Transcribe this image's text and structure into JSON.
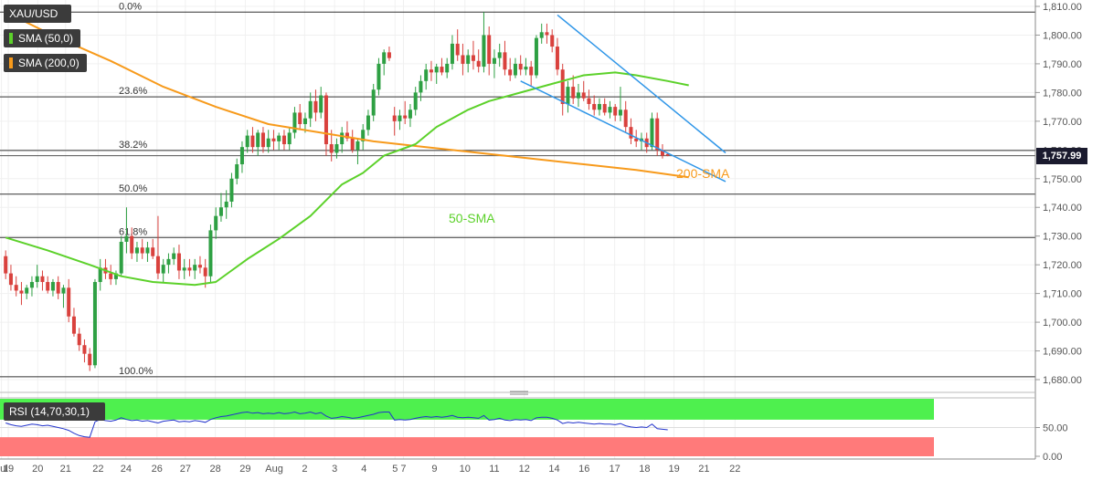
{
  "symbol": "XAU/USD",
  "legend": [
    {
      "label": "SMA (50,0)",
      "color": "#5cd12a"
    },
    {
      "label": "SMA (200,0)",
      "color": "#f79a1b"
    }
  ],
  "rsi_label": "RSI (14,70,30,1)",
  "last_price": "1,757.99",
  "annotations": {
    "sma50": "50-SMA",
    "sma200": "200-SMA"
  },
  "colors": {
    "up": "#2ea043",
    "down": "#d9413d",
    "sma50": "#5cd12a",
    "sma200": "#f79a1b",
    "channel": "#2f96e8",
    "rsi": "#2233cc",
    "overbought": "#4ef04e",
    "oversold": "#ff7a7a"
  },
  "chart_data": {
    "type": "candlestick",
    "y_axis": {
      "min": 1680,
      "max": 1810,
      "ticks": [
        1680,
        1690,
        1700,
        1710,
        1720,
        1730,
        1740,
        1750,
        1760,
        1770,
        1780,
        1790,
        1800,
        1810
      ],
      "tick_labels": [
        "1,680.00",
        "1,690.00",
        "1,700.00",
        "1,710.00",
        "1,720.00",
        "1,730.00",
        "1,740.00",
        "1,750.00",
        "1,760.00",
        "1,770.00",
        "1,780.00",
        "1,790.00",
        "1,800.00",
        "1,810.00"
      ]
    },
    "x_labels": [
      {
        "label": "Jul",
        "t": -0.8
      },
      {
        "label": "19",
        "t": 0.5
      },
      {
        "label": "20",
        "t": 6.1
      },
      {
        "label": "21",
        "t": 11.4
      },
      {
        "label": "22",
        "t": 17.6
      },
      {
        "label": "24",
        "t": 22.9
      },
      {
        "label": "26",
        "t": 28.8
      },
      {
        "label": "27",
        "t": 34.2
      },
      {
        "label": "28",
        "t": 39.9
      },
      {
        "label": "29",
        "t": 45.6
      },
      {
        "label": "Aug",
        "t": 51.1
      },
      {
        "label": "2",
        "t": 56.9
      },
      {
        "label": "3",
        "t": 62.6
      },
      {
        "label": "4",
        "t": 68.2
      },
      {
        "label": "5",
        "t": 74.1
      },
      {
        "label": "7",
        "t": 75.7
      },
      {
        "label": "9",
        "t": 81.6
      },
      {
        "label": "10",
        "t": 87.4
      },
      {
        "label": "11",
        "t": 93.0
      },
      {
        "label": "12",
        "t": 98.7
      },
      {
        "label": "14",
        "t": 104.4
      },
      {
        "label": "16",
        "t": 110.1
      },
      {
        "label": "17",
        "t": 115.9
      },
      {
        "label": "18",
        "t": 121.6
      },
      {
        "label": "19",
        "t": 127.2
      },
      {
        "label": "21",
        "t": 132.9
      },
      {
        "label": "22",
        "t": 138.8
      }
    ],
    "fibonacci": [
      {
        "label": "0.0%",
        "value": 1808
      },
      {
        "label": "23.6%",
        "value": 1778.5
      },
      {
        "label": "38.2%",
        "value": 1759.8
      },
      {
        "label": "50.0%",
        "value": 1744.6
      },
      {
        "label": "61.8%",
        "value": 1729.5
      },
      {
        "label": "100.0%",
        "value": 1681
      }
    ],
    "candles": [
      [
        1723,
        1725,
        1715,
        1717
      ],
      [
        1717,
        1720,
        1711,
        1713
      ],
      [
        1713,
        1716,
        1709,
        1711
      ],
      [
        1711,
        1714,
        1706,
        1710
      ],
      [
        1710,
        1713,
        1708,
        1712
      ],
      [
        1712,
        1716,
        1709,
        1714
      ],
      [
        1714,
        1720,
        1712,
        1716
      ],
      [
        1716,
        1718,
        1711,
        1714
      ],
      [
        1714,
        1716,
        1710,
        1711
      ],
      [
        1711,
        1715,
        1709,
        1714
      ],
      [
        1714,
        1716,
        1708,
        1710
      ],
      [
        1710,
        1713,
        1705,
        1712
      ],
      [
        1712,
        1715,
        1700,
        1702
      ],
      [
        1702,
        1705,
        1695,
        1696
      ],
      [
        1696,
        1698,
        1690,
        1692
      ],
      [
        1692,
        1694,
        1686,
        1689
      ],
      [
        1689,
        1691,
        1683,
        1685
      ],
      [
        1685,
        1715,
        1684,
        1714
      ],
      [
        1714,
        1722,
        1711,
        1719
      ],
      [
        1719,
        1722,
        1715,
        1717
      ],
      [
        1717,
        1720,
        1713,
        1715
      ],
      [
        1715,
        1718,
        1713,
        1717
      ],
      [
        1717,
        1730,
        1716,
        1728
      ],
      [
        1728,
        1740,
        1724,
        1730
      ],
      [
        1730,
        1733,
        1722,
        1724
      ],
      [
        1724,
        1728,
        1721,
        1726
      ],
      [
        1726,
        1729,
        1722,
        1724
      ],
      [
        1724,
        1728,
        1721,
        1726
      ],
      [
        1726,
        1729,
        1722,
        1723
      ],
      [
        1723,
        1737,
        1715,
        1717
      ],
      [
        1717,
        1722,
        1714,
        1720
      ],
      [
        1720,
        1724,
        1717,
        1722
      ],
      [
        1722,
        1726,
        1720,
        1724
      ],
      [
        1724,
        1727,
        1715,
        1718
      ],
      [
        1718,
        1722,
        1715,
        1719
      ],
      [
        1719,
        1722,
        1716,
        1718
      ],
      [
        1718,
        1722,
        1715,
        1720
      ],
      [
        1720,
        1723,
        1717,
        1719
      ],
      [
        1719,
        1722,
        1712,
        1716
      ],
      [
        1716,
        1734,
        1714,
        1732
      ],
      [
        1732,
        1740,
        1729,
        1737
      ],
      [
        1737,
        1745,
        1735,
        1740
      ],
      [
        1740,
        1746,
        1736,
        1742
      ],
      [
        1742,
        1752,
        1740,
        1750
      ],
      [
        1750,
        1757,
        1748,
        1755
      ],
      [
        1755,
        1763,
        1752,
        1761
      ],
      [
        1761,
        1767,
        1759,
        1765
      ],
      [
        1765,
        1768,
        1759,
        1761
      ],
      [
        1761,
        1767,
        1758,
        1766
      ],
      [
        1766,
        1768,
        1759,
        1761
      ],
      [
        1761,
        1767,
        1759,
        1764
      ],
      [
        1764,
        1767,
        1760,
        1763
      ],
      [
        1763,
        1766,
        1760,
        1765
      ],
      [
        1765,
        1767,
        1760,
        1762
      ],
      [
        1762,
        1768,
        1760,
        1766
      ],
      [
        1766,
        1775,
        1764,
        1773
      ],
      [
        1773,
        1776,
        1767,
        1769
      ],
      [
        1769,
        1773,
        1766,
        1771
      ],
      [
        1771,
        1780,
        1768,
        1777
      ],
      [
        1777,
        1781,
        1770,
        1773
      ],
      [
        1773,
        1782,
        1771,
        1779
      ],
      [
        1779,
        1780,
        1758,
        1762
      ],
      [
        1762,
        1767,
        1756,
        1759
      ],
      [
        1759,
        1764,
        1757,
        1762
      ],
      [
        1762,
        1768,
        1759,
        1766
      ],
      [
        1766,
        1770,
        1763,
        1764
      ],
      [
        1764,
        1767,
        1759,
        1760
      ],
      [
        1760,
        1764,
        1755,
        1763
      ],
      [
        1763,
        1769,
        1760,
        1767
      ],
      [
        1767,
        1774,
        1765,
        1772
      ],
      [
        1772,
        1783,
        1770,
        1781
      ],
      [
        1781,
        1792,
        1779,
        1790
      ],
      [
        1790,
        1795,
        1786,
        1794
      ],
      [
        1794,
        1796,
        1791,
        1792
      ],
      [
        1772,
        1775,
        1765,
        1770
      ],
      [
        1770,
        1774,
        1767,
        1772
      ],
      [
        1772,
        1777,
        1769,
        1771
      ],
      [
        1771,
        1776,
        1768,
        1774
      ],
      [
        1774,
        1782,
        1772,
        1780
      ],
      [
        1780,
        1786,
        1777,
        1784
      ],
      [
        1784,
        1790,
        1781,
        1788
      ],
      [
        1788,
        1791,
        1784,
        1787
      ],
      [
        1787,
        1790,
        1783,
        1789
      ],
      [
        1789,
        1792,
        1786,
        1787
      ],
      [
        1787,
        1792,
        1785,
        1790
      ],
      [
        1790,
        1800,
        1788,
        1797
      ],
      [
        1797,
        1802,
        1791,
        1793
      ],
      [
        1793,
        1797,
        1786,
        1790
      ],
      [
        1790,
        1795,
        1787,
        1793
      ],
      [
        1793,
        1798,
        1788,
        1791
      ],
      [
        1791,
        1795,
        1787,
        1789
      ],
      [
        1789,
        1808,
        1787,
        1800
      ],
      [
        1800,
        1803,
        1786,
        1790
      ],
      [
        1790,
        1795,
        1785,
        1792
      ],
      [
        1792,
        1797,
        1789,
        1794
      ],
      [
        1794,
        1798,
        1786,
        1788
      ],
      [
        1788,
        1792,
        1784,
        1786
      ],
      [
        1786,
        1792,
        1785,
        1790
      ],
      [
        1790,
        1793,
        1786,
        1788
      ],
      [
        1788,
        1792,
        1786,
        1789
      ],
      [
        1789,
        1791,
        1782,
        1786
      ],
      [
        1786,
        1800,
        1785,
        1799
      ],
      [
        1799,
        1804,
        1797,
        1801
      ],
      [
        1801,
        1804,
        1797,
        1800
      ],
      [
        1800,
        1802,
        1794,
        1796
      ],
      [
        1796,
        1799,
        1786,
        1788
      ],
      [
        1788,
        1790,
        1772,
        1776
      ],
      [
        1776,
        1784,
        1773,
        1782
      ],
      [
        1782,
        1786,
        1776,
        1778
      ],
      [
        1778,
        1783,
        1775,
        1780
      ],
      [
        1780,
        1784,
        1777,
        1778
      ],
      [
        1778,
        1781,
        1774,
        1776
      ],
      [
        1776,
        1779,
        1772,
        1774
      ],
      [
        1774,
        1778,
        1772,
        1776
      ],
      [
        1776,
        1778,
        1772,
        1773
      ],
      [
        1773,
        1777,
        1771,
        1775
      ],
      [
        1775,
        1776,
        1770,
        1772
      ],
      [
        1772,
        1782,
        1770,
        1774
      ],
      [
        1774,
        1777,
        1766,
        1768
      ],
      [
        1768,
        1771,
        1762,
        1764
      ],
      [
        1764,
        1767,
        1761,
        1763
      ],
      [
        1763,
        1766,
        1760,
        1764
      ],
      [
        1764,
        1766,
        1759,
        1761
      ],
      [
        1761,
        1773,
        1760,
        1771
      ],
      [
        1771,
        1773,
        1758,
        1760
      ],
      [
        1760,
        1762,
        1757,
        1758
      ],
      [
        1758.6,
        1759,
        1757.8,
        1758
      ]
    ],
    "sma50": [
      [
        0,
        1729.5
      ],
      [
        8,
        1725
      ],
      [
        16,
        1720
      ],
      [
        22,
        1716
      ],
      [
        28,
        1714
      ],
      [
        36,
        1713
      ],
      [
        40,
        1714
      ],
      [
        46,
        1722
      ],
      [
        52,
        1729
      ],
      [
        58,
        1737
      ],
      [
        64,
        1748
      ],
      [
        68,
        1752
      ],
      [
        72,
        1758
      ],
      [
        78,
        1762
      ],
      [
        82,
        1768
      ],
      [
        88,
        1774
      ],
      [
        92,
        1777
      ],
      [
        98,
        1780
      ],
      [
        104,
        1783
      ],
      [
        110,
        1786
      ],
      [
        116,
        1787
      ],
      [
        120,
        1786
      ],
      [
        126,
        1784
      ],
      [
        130,
        1782.5
      ]
    ],
    "sma200": [
      [
        0,
        1808
      ],
      [
        10,
        1799
      ],
      [
        20,
        1791
      ],
      [
        30,
        1782
      ],
      [
        40,
        1775
      ],
      [
        50,
        1769
      ],
      [
        60,
        1766
      ],
      [
        70,
        1763
      ],
      [
        80,
        1761
      ],
      [
        90,
        1759
      ],
      [
        100,
        1757
      ],
      [
        110,
        1755
      ],
      [
        120,
        1753
      ],
      [
        130,
        1750.5
      ]
    ],
    "channel_upper": [
      [
        105,
        1807
      ],
      [
        137,
        1759
      ]
    ],
    "channel_lower": [
      [
        98,
        1784
      ],
      [
        137,
        1749
      ]
    ],
    "rsi": {
      "ylim": [
        0,
        100
      ],
      "ticks": [
        0,
        50
      ],
      "tick_labels": [
        "0.00",
        "50.00"
      ],
      "overbought": 70,
      "oversold": 30,
      "values": [
        58,
        55,
        53,
        52,
        54,
        56,
        55,
        53,
        54,
        52,
        50,
        48,
        45,
        40,
        36,
        34,
        33,
        60,
        64,
        62,
        61,
        63,
        67,
        64,
        62,
        63,
        61,
        62,
        60,
        58,
        61,
        62,
        63,
        60,
        61,
        60,
        62,
        61,
        59,
        64,
        67,
        69,
        70,
        72,
        74,
        76,
        77,
        75,
        76,
        74,
        75,
        74,
        76,
        74,
        75,
        77,
        74,
        75,
        77,
        74,
        76,
        70,
        66,
        67,
        69,
        68,
        66,
        67,
        69,
        71,
        73,
        76,
        77,
        77,
        63,
        64,
        63,
        64,
        66,
        68,
        69,
        68,
        69,
        68,
        69,
        71,
        68,
        67,
        68,
        67,
        66,
        71,
        63,
        64,
        66,
        63,
        62,
        64,
        63,
        64,
        62,
        67,
        68,
        68,
        66,
        63,
        57,
        59,
        58,
        59,
        58,
        57,
        56,
        57,
        56,
        56,
        55,
        57,
        53,
        51,
        50,
        51,
        50,
        56,
        48,
        47,
        46
      ]
    }
  }
}
